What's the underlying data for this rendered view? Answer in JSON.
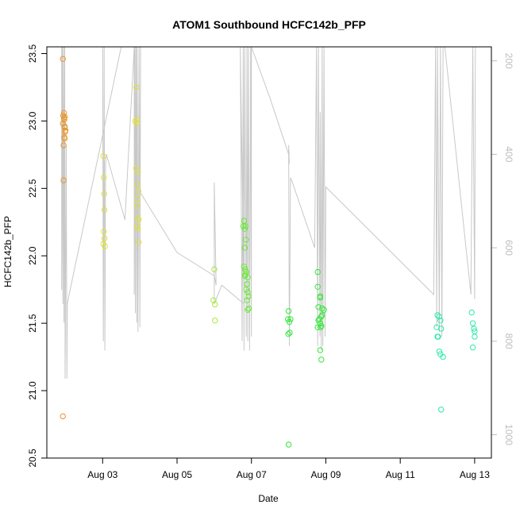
{
  "chart_data": {
    "type": "scatter",
    "title": "ATOM1 Southbound HCFC142b_PFP",
    "xlabel": "Date",
    "ylabel": "HCFC142b_PFP",
    "x_ticks": [
      "Aug 03",
      "Aug 05",
      "Aug 07",
      "Aug 09",
      "Aug 11",
      "Aug 13"
    ],
    "x_tick_days": [
      3,
      5,
      7,
      9,
      11,
      13
    ],
    "xlim": [
      1.5,
      13.45
    ],
    "ylim": [
      20.5,
      23.55
    ],
    "y_ticks": [
      20.5,
      21.0,
      21.5,
      22.0,
      22.5,
      23.0,
      23.5
    ],
    "y_tick_labels": [
      "20.5",
      "21.0",
      "21.5",
      "22.0",
      "22.5",
      "23.0",
      "23.5"
    ],
    "y2_label": "",
    "y2lim": [
      1050,
      170
    ],
    "y2_ticks": [
      200,
      400,
      600,
      800,
      1000
    ],
    "grid": false,
    "legend": "none",
    "altitude_color": "#c8c8c8",
    "series": [
      {
        "color": "#e8962a",
        "points": [
          [
            1.93,
            23.46
          ],
          [
            1.95,
            22.56
          ],
          [
            1.97,
            22.88
          ],
          [
            1.98,
            22.87
          ],
          [
            2.0,
            22.93
          ],
          [
            1.98,
            22.96
          ],
          [
            1.96,
            23.02
          ],
          [
            1.94,
            23.04
          ],
          [
            1.93,
            22.98
          ],
          [
            1.96,
            23.06
          ],
          [
            1.98,
            23.03
          ],
          [
            1.97,
            23.01
          ],
          [
            1.98,
            22.95
          ],
          [
            1.99,
            22.92
          ],
          [
            1.95,
            22.82
          ],
          [
            1.93,
            20.81
          ]
        ]
      },
      {
        "color": "#e0e23a",
        "points": [
          [
            3.02,
            22.74
          ],
          [
            3.03,
            22.58
          ],
          [
            3.04,
            22.46
          ],
          [
            3.05,
            22.34
          ],
          [
            3.03,
            22.18
          ],
          [
            3.05,
            22.13
          ],
          [
            3.02,
            22.09
          ],
          [
            3.06,
            22.07
          ],
          [
            3.9,
            23.25
          ],
          [
            3.88,
            23.0
          ],
          [
            3.91,
            22.98
          ],
          [
            3.92,
            23.01
          ],
          [
            3.9,
            22.65
          ],
          [
            3.95,
            22.62
          ],
          [
            3.93,
            22.53
          ],
          [
            3.96,
            22.48
          ],
          [
            3.94,
            22.42
          ],
          [
            3.92,
            22.37
          ],
          [
            3.95,
            22.28
          ],
          [
            3.97,
            22.27
          ],
          [
            3.93,
            22.22
          ],
          [
            3.95,
            22.2
          ],
          [
            3.97,
            22.1
          ]
        ]
      },
      {
        "color": "#a7e83a",
        "points": [
          [
            6.0,
            21.9
          ],
          [
            5.98,
            21.67
          ],
          [
            6.02,
            21.64
          ],
          [
            6.02,
            21.52
          ]
        ]
      },
      {
        "color": "#69ea35",
        "points": [
          [
            6.8,
            22.26
          ],
          [
            6.78,
            22.22
          ],
          [
            6.84,
            22.22
          ],
          [
            6.82,
            22.2
          ],
          [
            6.85,
            22.12
          ],
          [
            6.82,
            22.06
          ],
          [
            6.8,
            21.92
          ],
          [
            6.83,
            21.9
          ],
          [
            6.86,
            21.88
          ],
          [
            6.84,
            21.86
          ],
          [
            6.82,
            21.85
          ],
          [
            6.9,
            21.84
          ],
          [
            6.88,
            21.79
          ],
          [
            6.86,
            21.75
          ],
          [
            6.9,
            21.73
          ],
          [
            6.92,
            21.7
          ],
          [
            6.88,
            21.67
          ],
          [
            6.93,
            21.61
          ],
          [
            6.9,
            21.6
          ]
        ]
      },
      {
        "color": "#32e83a",
        "points": [
          [
            8.0,
            21.59
          ],
          [
            7.98,
            21.53
          ],
          [
            8.05,
            21.53
          ],
          [
            8.02,
            21.51
          ],
          [
            8.03,
            21.43
          ],
          [
            7.99,
            21.42
          ],
          [
            8.0,
            20.6
          ],
          [
            8.78,
            21.88
          ],
          [
            8.78,
            21.77
          ],
          [
            8.85,
            21.7
          ],
          [
            8.85,
            21.69
          ],
          [
            8.8,
            21.62
          ],
          [
            8.9,
            21.61
          ],
          [
            8.95,
            21.6
          ],
          [
            8.9,
            21.56
          ],
          [
            8.88,
            21.55
          ],
          [
            8.82,
            21.53
          ],
          [
            8.8,
            21.52
          ],
          [
            8.85,
            21.5
          ],
          [
            8.88,
            21.48
          ],
          [
            8.78,
            21.47
          ],
          [
            8.86,
            21.47
          ],
          [
            8.85,
            21.3
          ],
          [
            8.88,
            21.23
          ]
        ]
      },
      {
        "color": "#2ee8aa",
        "points": [
          [
            12.0,
            21.56
          ],
          [
            12.05,
            21.55
          ],
          [
            12.08,
            21.52
          ],
          [
            11.98,
            21.47
          ],
          [
            12.1,
            21.46
          ],
          [
            12.0,
            21.4
          ],
          [
            12.02,
            21.4
          ],
          [
            12.05,
            21.29
          ],
          [
            12.08,
            21.27
          ],
          [
            12.15,
            21.25
          ],
          [
            12.1,
            20.86
          ],
          [
            12.92,
            21.58
          ],
          [
            12.95,
            21.5
          ],
          [
            12.98,
            21.46
          ],
          [
            13.0,
            21.44
          ],
          [
            13.0,
            21.4
          ],
          [
            12.95,
            21.32
          ]
        ]
      }
    ],
    "altitude_trace": [
      [
        1.9,
        170
      ],
      [
        1.9,
        690
      ],
      [
        1.92,
        170
      ],
      [
        1.93,
        720
      ],
      [
        1.95,
        170
      ],
      [
        1.96,
        760
      ],
      [
        1.98,
        170
      ],
      [
        1.99,
        880
      ],
      [
        2.0,
        770
      ],
      [
        2.02,
        380
      ],
      [
        2.04,
        880
      ],
      [
        2.05,
        720
      ],
      [
        2.1,
        700
      ],
      [
        3.5,
        170
      ],
      [
        3.0,
        170
      ],
      [
        3.02,
        800
      ],
      [
        3.04,
        170
      ],
      [
        3.06,
        820
      ],
      [
        3.08,
        420
      ],
      [
        3.1,
        400
      ],
      [
        3.6,
        540
      ],
      [
        3.85,
        170
      ],
      [
        3.85,
        700
      ],
      [
        3.87,
        170
      ],
      [
        3.88,
        740
      ],
      [
        3.9,
        170
      ],
      [
        3.92,
        760
      ],
      [
        3.93,
        170
      ],
      [
        3.95,
        780
      ],
      [
        3.98,
        170
      ],
      [
        4.0,
        770
      ],
      [
        4.02,
        170
      ],
      [
        4.0,
        480
      ],
      [
        5.0,
        610
      ],
      [
        6.0,
        660
      ],
      [
        6.05,
        680
      ],
      [
        6.0,
        460
      ],
      [
        6.0,
        720
      ],
      [
        6.2,
        680
      ],
      [
        6.8,
        720
      ],
      [
        6.7,
        170
      ],
      [
        6.75,
        800
      ],
      [
        6.78,
        170
      ],
      [
        6.8,
        820
      ],
      [
        6.82,
        170
      ],
      [
        6.86,
        790
      ],
      [
        6.88,
        170
      ],
      [
        6.9,
        800
      ],
      [
        6.92,
        170
      ],
      [
        6.95,
        820
      ],
      [
        6.98,
        170
      ],
      [
        7.0,
        790
      ],
      [
        7.0,
        170
      ],
      [
        7.5,
        280
      ],
      [
        8.0,
        400
      ],
      [
        8.02,
        420
      ],
      [
        8.0,
        380
      ],
      [
        8.02,
        810
      ],
      [
        8.03,
        700
      ],
      [
        8.05,
        450
      ],
      [
        8.1,
        460
      ],
      [
        8.7,
        600
      ],
      [
        8.75,
        170
      ],
      [
        8.78,
        810
      ],
      [
        8.8,
        170
      ],
      [
        8.84,
        790
      ],
      [
        8.85,
        310
      ],
      [
        8.88,
        820
      ],
      [
        8.9,
        170
      ],
      [
        8.92,
        810
      ],
      [
        8.95,
        170
      ],
      [
        8.98,
        790
      ],
      [
        9.0,
        470
      ],
      [
        11.9,
        700
      ],
      [
        11.95,
        170
      ],
      [
        11.98,
        770
      ],
      [
        12.0,
        170
      ],
      [
        12.05,
        780
      ],
      [
        12.08,
        170
      ],
      [
        12.12,
        790
      ],
      [
        12.15,
        170
      ],
      [
        12.2,
        170
      ],
      [
        12.9,
        700
      ],
      [
        12.95,
        170
      ],
      [
        13.0,
        710
      ],
      [
        13.02,
        170
      ]
    ]
  }
}
